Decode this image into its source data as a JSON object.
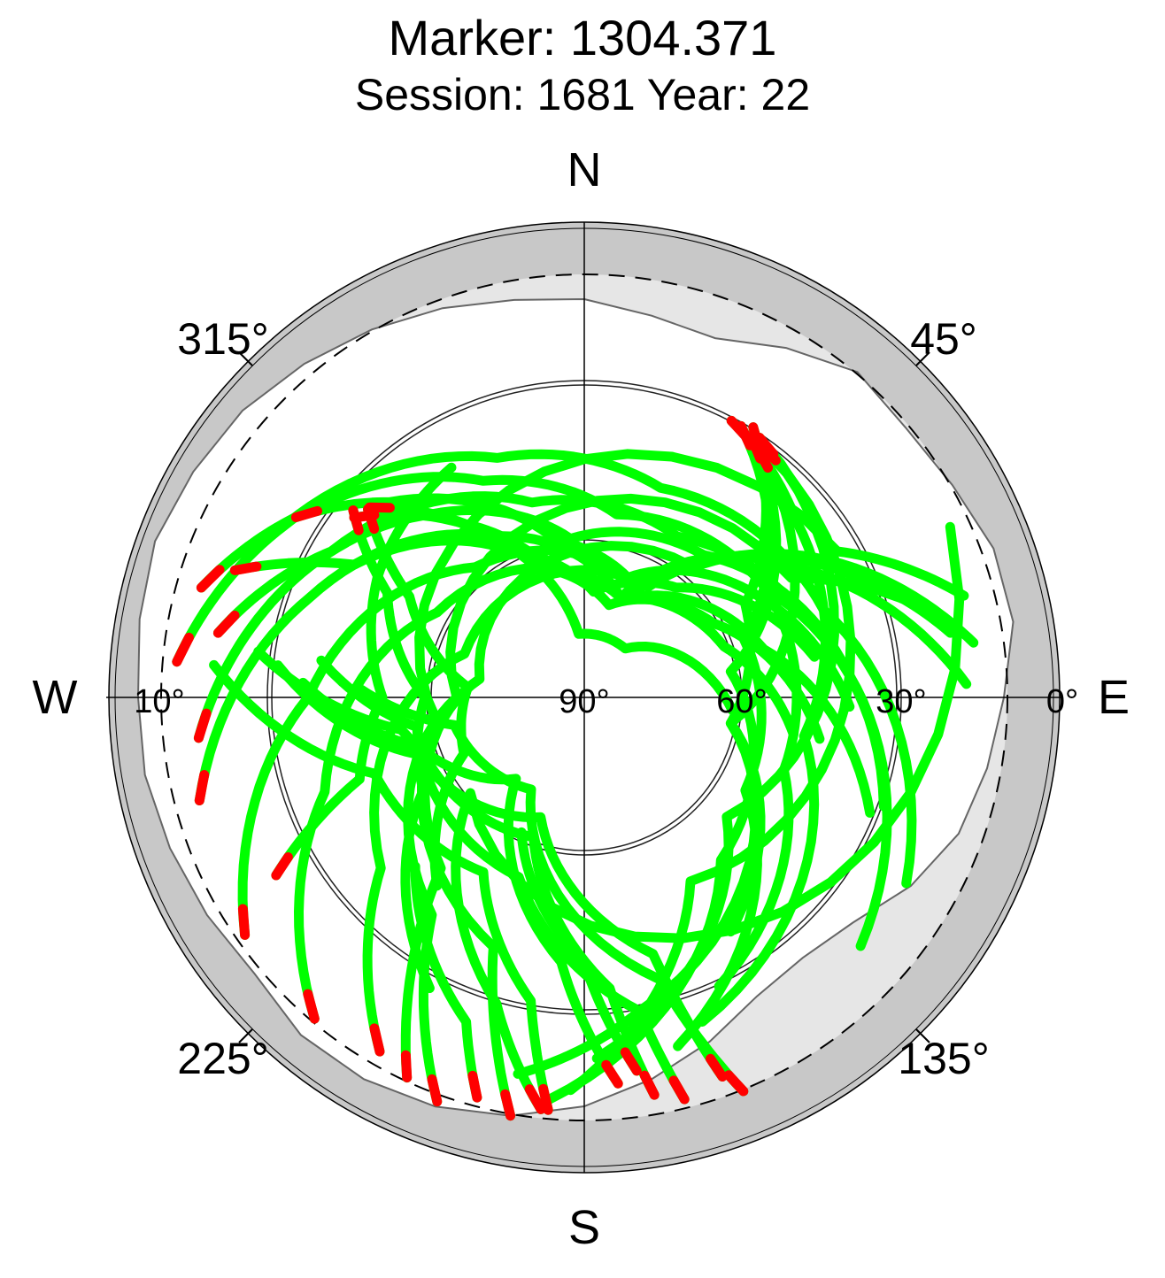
{
  "chart_data": {
    "type": "scatter",
    "coordinate_system": "polar-skyplot",
    "title": "Marker: 1304.371",
    "subtitle": "Session: 1681 Year: 22",
    "compass": {
      "north": "N",
      "east": "E",
      "south": "S",
      "west": "W"
    },
    "azimuth_labels": [
      {
        "azimuth": 45,
        "label": "45°"
      },
      {
        "azimuth": 135,
        "label": "135°"
      },
      {
        "azimuth": 225,
        "label": "225°"
      },
      {
        "azimuth": 315,
        "label": "315°"
      }
    ],
    "elevation_labels": [
      {
        "elevation": 90,
        "label": "90°"
      },
      {
        "elevation": 60,
        "label": "60°"
      },
      {
        "elevation": 30,
        "label": "30°"
      },
      {
        "elevation": 0,
        "label": "0°"
      },
      {
        "elevation": 10,
        "label": "10°",
        "side": "west"
      }
    ],
    "elevation_rings": [
      30,
      60
    ],
    "elevation_mask_deg": 10,
    "grid": true,
    "colors": {
      "track": "#00ff00",
      "low_snr": "#ff0000",
      "outer_band": "#c8c8c8",
      "visibility_region": "#e6e6e6",
      "observed_region": "#ffffff",
      "grid": "#000000"
    },
    "observed_horizon": [
      [
        0,
        15
      ],
      [
        10,
        17
      ],
      [
        20,
        18
      ],
      [
        30,
        14
      ],
      [
        40,
        10
      ],
      [
        50,
        11
      ],
      [
        60,
        10
      ],
      [
        70,
        8
      ],
      [
        80,
        8
      ],
      [
        90,
        11
      ],
      [
        100,
        13
      ],
      [
        110,
        15
      ],
      [
        120,
        19
      ],
      [
        130,
        24
      ],
      [
        140,
        26
      ],
      [
        150,
        25
      ],
      [
        160,
        21
      ],
      [
        170,
        17
      ],
      [
        180,
        13
      ],
      [
        190,
        10
      ],
      [
        200,
        8
      ],
      [
        210,
        7
      ],
      [
        220,
        7
      ],
      [
        230,
        9
      ],
      [
        240,
        8
      ],
      [
        250,
        7
      ],
      [
        260,
        6
      ],
      [
        270,
        6
      ],
      [
        280,
        5
      ],
      [
        290,
        4
      ],
      [
        300,
        5
      ],
      [
        310,
        6
      ],
      [
        320,
        8
      ],
      [
        330,
        10
      ],
      [
        340,
        12
      ],
      [
        350,
        14
      ]
    ],
    "tracks": [
      {
        "azimuth": [
          311.5,
          330,
          355,
          40,
          95
        ],
        "elevation": [
          36.0,
          55,
          78,
          78,
          62
        ]
      },
      {
        "azimuth": [
          308,
          325,
          345,
          15,
          60,
          100
        ],
        "elevation": [
          35.0,
          50,
          65,
          72,
          62,
          45
        ]
      },
      {
        "azimuth": [
          311,
          300,
          275,
          245,
          218
        ],
        "elevation": [
          36.0,
          52,
          68,
          65,
          45
        ]
      },
      {
        "azimuth": [
          309,
          298,
          270,
          240,
          208
        ],
        "elevation": [
          34.0,
          48,
          60,
          55,
          28
        ]
      },
      {
        "azimuth": [
          302,
          315,
          350,
          30,
          75,
          112
        ],
        "elevation": [
          26.0,
          38,
          60,
          68,
          55,
          32
        ]
      },
      {
        "azimuth": [
          286,
          305,
          335,
          10,
          60,
          110
        ],
        "elevation": [
          15.0,
          28,
          45,
          55,
          50,
          30
        ]
      },
      {
        "azimuth": [
          275,
          300,
          340,
          20,
          70,
          120
        ],
        "elevation": [
          13.0,
          25,
          42,
          48,
          42,
          20
        ]
      },
      {
        "azimuth": [
          264,
          290,
          320,
          355,
          40,
          85,
          132
        ],
        "elevation": [
          17.0,
          30,
          45,
          60,
          55,
          40,
          20
        ]
      },
      {
        "azimuth": [
          240,
          250,
          270,
          300,
          330
        ],
        "elevation": [
          23.0,
          45,
          52,
          45,
          40
        ]
      },
      {
        "azimuth": [
          32,
          60,
          100,
          148
        ],
        "elevation": [
          30.0,
          55,
          62,
          38
        ]
      },
      {
        "azimuth": [
          30,
          60,
          110,
          155
        ],
        "elevation": [
          31.0,
          50,
          50,
          30
        ]
      },
      {
        "azimuth": [
          28,
          50,
          100,
          160
        ],
        "elevation": [
          31.0,
          38,
          48,
          25
        ]
      },
      {
        "azimuth": [
          30,
          70,
          120,
          165
        ],
        "elevation": [
          31.0,
          58,
          55,
          22
        ]
      },
      {
        "azimuth": [
          33,
          80,
          140,
          185
        ],
        "elevation": [
          32.0,
          62,
          50,
          14
        ]
      },
      {
        "azimuth": [
          35,
          100,
          170,
          190
        ],
        "elevation": [
          33.0,
          62,
          30,
          18
        ]
      },
      {
        "azimuth": [
          35,
          150,
          182
        ],
        "elevation": [
          32.0,
          50,
          16
        ]
      },
      {
        "azimuth": [
          34,
          130,
          178
        ],
        "elevation": [
          31.0,
          55,
          22
        ]
      },
      {
        "azimuth": [
          290,
          300,
          335,
          5,
          40,
          80
        ],
        "elevation": [
          20.0,
          40,
          60,
          70,
          63,
          46
        ]
      },
      {
        "azimuth": [
          280,
          300,
          345,
          30,
          70
        ],
        "elevation": [
          20.0,
          35,
          52,
          55,
          46
        ]
      },
      {
        "azimuth": [
          255,
          290,
          330,
          20,
          70,
          100
        ],
        "elevation": [
          15.0,
          35,
          55,
          70,
          62,
          50
        ]
      },
      {
        "azimuth": [
          235,
          270,
          320,
          20,
          60,
          92
        ],
        "elevation": [
          12.0,
          38,
          58,
          66,
          52,
          40
        ]
      },
      {
        "azimuth": [
          220,
          250,
          300,
          20,
          60,
          88
        ],
        "elevation": [
          11.0,
          38,
          58,
          70,
          42,
          18
        ]
      },
      {
        "azimuth": [
          210,
          230,
          290,
          30,
          65,
          80
        ],
        "elevation": [
          13.0,
          40,
          66,
          66,
          35,
          20
        ]
      },
      {
        "azimuth": [
          205,
          220,
          280,
          40,
          70,
          82
        ],
        "elevation": [
          11.0,
          48,
          70,
          58,
          28,
          16
        ]
      },
      {
        "azimuth": [
          200,
          215,
          270,
          60,
          78
        ],
        "elevation": [
          9.0,
          40,
          66,
          45,
          20
        ]
      },
      {
        "azimuth": [
          190,
          200,
          260,
          60,
          75
        ],
        "elevation": [
          10.0,
          40,
          62,
          35,
          16
        ]
      },
      {
        "azimuth": [
          186,
          196,
          230,
          65
        ],
        "elevation": [
          12.0,
          30,
          62,
          14
        ]
      },
      {
        "azimuth": [
          185,
          190,
          210,
          250,
          275
        ],
        "elevation": [
          12.0,
          32,
          52,
          48,
          20
        ]
      },
      {
        "azimuth": [
          175,
          185,
          220,
          260,
          278
        ],
        "elevation": [
          17.0,
          40,
          70,
          55,
          28
        ]
      },
      {
        "azimuth": [
          170,
          175,
          200,
          250,
          276
        ],
        "elevation": [
          14.0,
          35,
          62,
          58,
          32
        ]
      },
      {
        "azimuth": [
          166,
          170,
          200,
          260,
          278
        ],
        "elevation": [
          12.0,
          30,
          54,
          58,
          40
        ]
      },
      {
        "azimuth": [
          160,
          165,
          200,
          255,
          273
        ],
        "elevation": [
          14.0,
          40,
          66,
          56,
          37
        ]
      },
      {
        "azimuth": [
          158,
          165,
          210,
          258,
          272
        ],
        "elevation": [
          10.0,
          35,
          70,
          65,
          48
        ]
      },
      {
        "azimuth": [
          172,
          180,
          205
        ],
        "elevation": [
          19.0,
          40,
          62
        ]
      },
      {
        "azimuth": [
          195,
          200,
          225
        ],
        "elevation": [
          12.0,
          25,
          45
        ]
      }
    ]
  }
}
